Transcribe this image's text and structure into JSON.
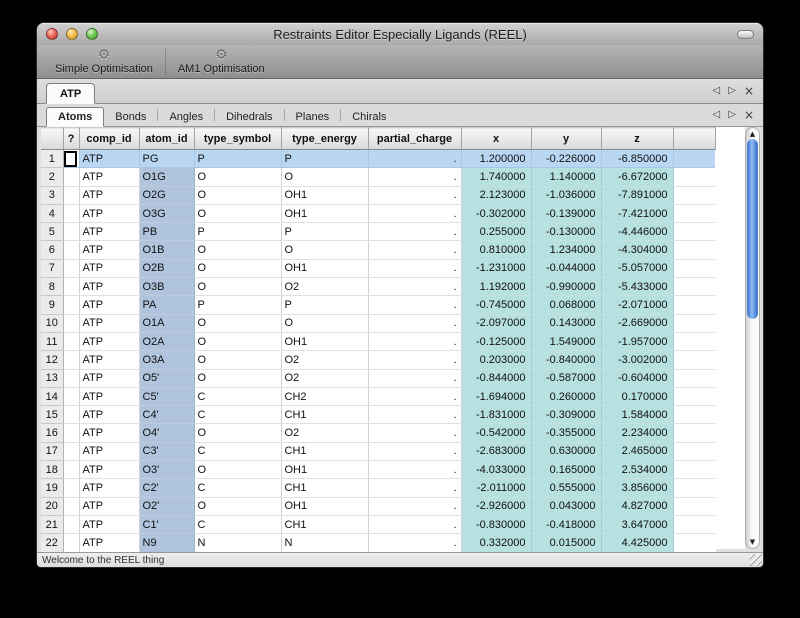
{
  "window": {
    "title": "Restraints Editor Especially Ligands (REEL)"
  },
  "icons": {
    "gear": "⚙",
    "nav_left": "◁",
    "nav_right": "▷",
    "close": "×",
    "up_arrow": "▲",
    "down_arrow": "▼"
  },
  "toolbar": {
    "buttons": [
      {
        "label": "Simple Optimisation",
        "icon": "gear-icon"
      },
      {
        "label": "AM1 Optimisation",
        "icon": "gear-icon"
      }
    ]
  },
  "tabs": {
    "document": {
      "items": [
        {
          "label": "ATP",
          "selected": true
        }
      ]
    },
    "section": {
      "items": [
        {
          "label": "Atoms",
          "selected": true
        },
        {
          "label": "Bonds"
        },
        {
          "label": "Angles"
        },
        {
          "label": "Dihedrals"
        },
        {
          "label": "Planes"
        },
        {
          "label": "Chirals"
        }
      ]
    }
  },
  "table": {
    "columns": [
      "?",
      "comp_id",
      "atom_id",
      "type_symbol",
      "type_energy",
      "partial_charge",
      "x",
      "y",
      "z"
    ],
    "selected_row": 1,
    "rows": [
      [
        1,
        "ATP",
        "PG",
        "P",
        "P",
        ".",
        "1.200000",
        "-0.226000",
        "-6.850000"
      ],
      [
        2,
        "ATP",
        "O1G",
        "O",
        "O",
        ".",
        "1.740000",
        "1.140000",
        "-6.672000"
      ],
      [
        3,
        "ATP",
        "O2G",
        "O",
        "OH1",
        ".",
        "2.123000",
        "-1.036000",
        "-7.891000"
      ],
      [
        4,
        "ATP",
        "O3G",
        "O",
        "OH1",
        ".",
        "-0.302000",
        "-0.139000",
        "-7.421000"
      ],
      [
        5,
        "ATP",
        "PB",
        "P",
        "P",
        ".",
        "0.255000",
        "-0.130000",
        "-4.446000"
      ],
      [
        6,
        "ATP",
        "O1B",
        "O",
        "O",
        ".",
        "0.810000",
        "1.234000",
        "-4.304000"
      ],
      [
        7,
        "ATP",
        "O2B",
        "O",
        "OH1",
        ".",
        "-1.231000",
        "-0.044000",
        "-5.057000"
      ],
      [
        8,
        "ATP",
        "O3B",
        "O",
        "O2",
        ".",
        "1.192000",
        "-0.990000",
        "-5.433000"
      ],
      [
        9,
        "ATP",
        "PA",
        "P",
        "P",
        ".",
        "-0.745000",
        "0.068000",
        "-2.071000"
      ],
      [
        10,
        "ATP",
        "O1A",
        "O",
        "O",
        ".",
        "-2.097000",
        "0.143000",
        "-2.669000"
      ],
      [
        11,
        "ATP",
        "O2A",
        "O",
        "OH1",
        ".",
        "-0.125000",
        "1.549000",
        "-1.957000"
      ],
      [
        12,
        "ATP",
        "O3A",
        "O",
        "O2",
        ".",
        "0.203000",
        "-0.840000",
        "-3.002000"
      ],
      [
        13,
        "ATP",
        "O5'",
        "O",
        "O2",
        ".",
        "-0.844000",
        "-0.587000",
        "-0.604000"
      ],
      [
        14,
        "ATP",
        "C5'",
        "C",
        "CH2",
        ".",
        "-1.694000",
        "0.260000",
        "0.170000"
      ],
      [
        15,
        "ATP",
        "C4'",
        "C",
        "CH1",
        ".",
        "-1.831000",
        "-0.309000",
        "1.584000"
      ],
      [
        16,
        "ATP",
        "O4'",
        "O",
        "O2",
        ".",
        "-0.542000",
        "-0.355000",
        "2.234000"
      ],
      [
        17,
        "ATP",
        "C3'",
        "C",
        "CH1",
        ".",
        "-2.683000",
        "0.630000",
        "2.465000"
      ],
      [
        18,
        "ATP",
        "O3'",
        "O",
        "OH1",
        ".",
        "-4.033000",
        "0.165000",
        "2.534000"
      ],
      [
        19,
        "ATP",
        "C2'",
        "C",
        "CH1",
        ".",
        "-2.011000",
        "0.555000",
        "3.856000"
      ],
      [
        20,
        "ATP",
        "O2'",
        "O",
        "OH1",
        ".",
        "-2.926000",
        "0.043000",
        "4.827000"
      ],
      [
        21,
        "ATP",
        "C1'",
        "C",
        "CH1",
        ".",
        "-0.830000",
        "-0.418000",
        "3.647000"
      ],
      [
        22,
        "ATP",
        "N9",
        "N",
        "N",
        ".",
        "0.332000",
        "0.015000",
        "4.425000"
      ]
    ]
  },
  "status_bar": {
    "message": "Welcome to the REEL thing"
  },
  "colors": {
    "selected_row": "#b9d7f3",
    "atom_id_column": "#b0c4de",
    "coord_columns": "#b7e0e0",
    "scrollbar_thumb": "#4f8ee7"
  }
}
